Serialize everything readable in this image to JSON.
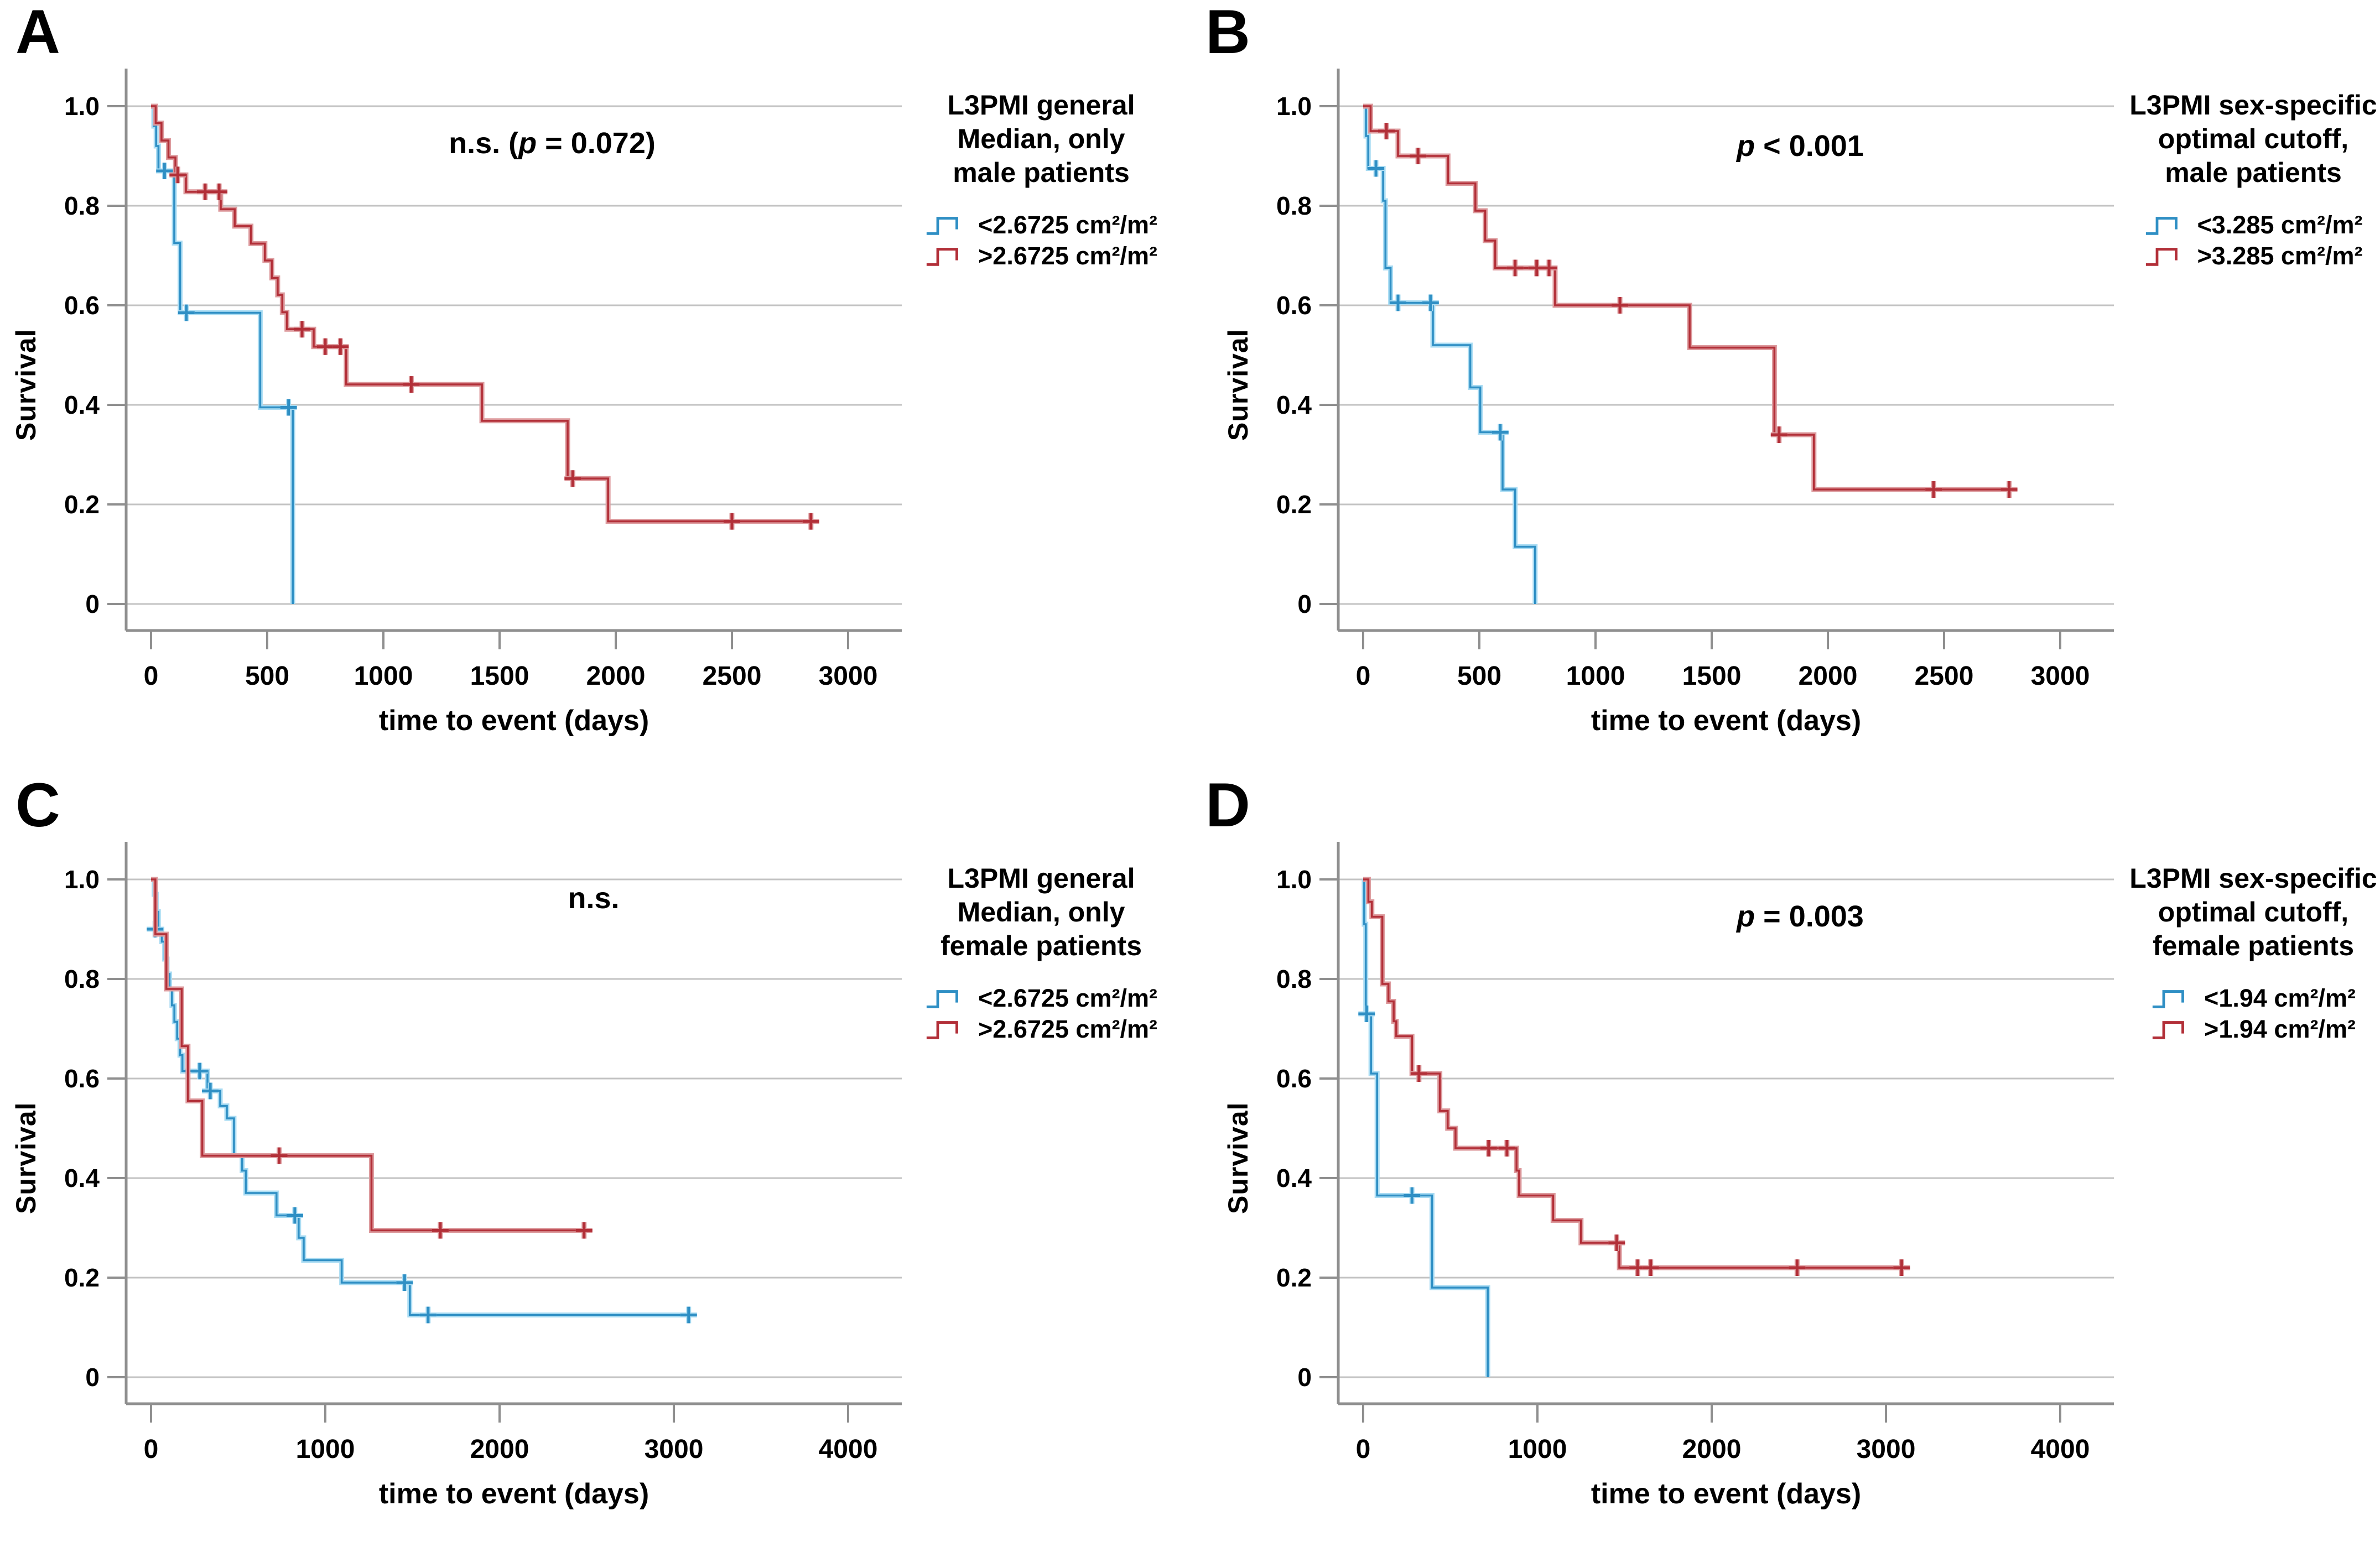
{
  "figure": {
    "ylabel": "Survival",
    "xlabel": "time to event (days)",
    "colors": {
      "blue": "#2f8fc4",
      "blue_halo": "#aadcf3",
      "red": "#b22f38",
      "red_halo": "#dd9b9e",
      "grid": "#c3c3c3",
      "axis": "#8f8f8f",
      "text": "#000000"
    }
  },
  "chart_data": [
    {
      "type": "line",
      "subtype": "kaplan-meier-step",
      "panel_label": "A",
      "title": "L3PMI general Median, only male patients",
      "legend_title_lines": [
        "L3PMI general",
        "Median, only",
        "male patients"
      ],
      "annotation": {
        "prefix": "n.s. (",
        "p": "p",
        "suffix": " = 0.072)"
      },
      "xlabel": "time to event (days)",
      "ylabel": "Survival",
      "xlim": [
        0,
        3000
      ],
      "ylim": [
        0,
        1
      ],
      "xticks": [
        0,
        500,
        1000,
        1500,
        2000,
        2500,
        3000
      ],
      "yticks": [
        {
          "v": 1,
          "label": "1.0"
        },
        {
          "v": 0.8,
          "label": "0.8"
        },
        {
          "v": 0.6,
          "label": "0.6"
        },
        {
          "v": 0.4,
          "label": "0.4"
        },
        {
          "v": 0.2,
          "label": "0.2"
        },
        {
          "v": 0,
          "label": "0"
        }
      ],
      "grid": true,
      "legend_position": "right",
      "series": [
        {
          "name": "<2.6725 cm²/m²",
          "color_key": "blue",
          "steps": [
            [
              0,
              1
            ],
            [
              12,
              0.96
            ],
            [
              22,
              0.92
            ],
            [
              32,
              0.87
            ],
            [
              100,
              0.725
            ],
            [
              125,
              0.585
            ],
            [
              470,
              0.395
            ],
            [
              610,
              0
            ]
          ],
          "end": 610,
          "censors": [
            [
              58,
              0.87
            ],
            [
              152,
              0.585
            ],
            [
              592,
              0.395
            ]
          ]
        },
        {
          "name": ">2.6725 cm²/m²",
          "color_key": "red",
          "steps": [
            [
              0,
              1
            ],
            [
              20,
              0.966
            ],
            [
              45,
              0.931
            ],
            [
              75,
              0.897
            ],
            [
              105,
              0.862
            ],
            [
              150,
              0.828
            ],
            [
              300,
              0.793
            ],
            [
              360,
              0.759
            ],
            [
              430,
              0.724
            ],
            [
              490,
              0.69
            ],
            [
              520,
              0.655
            ],
            [
              545,
              0.621
            ],
            [
              565,
              0.586
            ],
            [
              585,
              0.552
            ],
            [
              700,
              0.517
            ],
            [
              840,
              0.441
            ],
            [
              1424,
              0.368
            ],
            [
              1793,
              0.252
            ],
            [
              1967,
              0.166
            ]
          ],
          "end": 2855,
          "censors": [
            [
              115,
              0.862
            ],
            [
              233,
              0.828
            ],
            [
              293,
              0.828
            ],
            [
              650,
              0.552
            ],
            [
              750,
              0.517
            ],
            [
              815,
              0.517
            ],
            [
              1120,
              0.441
            ],
            [
              1815,
              0.252
            ],
            [
              2500,
              0.166
            ],
            [
              2840,
              0.166
            ]
          ]
        }
      ]
    },
    {
      "type": "line",
      "subtype": "kaplan-meier-step",
      "panel_label": "B",
      "title": "L3PMI sex-specific optimal cutoff, male patients",
      "legend_title_lines": [
        "L3PMI sex-specific",
        "optimal cutoff,",
        "male patients"
      ],
      "annotation": {
        "prefix": "",
        "p": "p",
        "suffix": " < 0.001"
      },
      "xlabel": "time to event (days)",
      "ylabel": "Survival",
      "xlim": [
        0,
        3000
      ],
      "ylim": [
        0,
        1
      ],
      "xticks": [
        0,
        500,
        1000,
        1500,
        2000,
        2500,
        3000
      ],
      "yticks": [
        {
          "v": 1,
          "label": "1.0"
        },
        {
          "v": 0.8,
          "label": "0.8"
        },
        {
          "v": 0.6,
          "label": "0.6"
        },
        {
          "v": 0.4,
          "label": "0.4"
        },
        {
          "v": 0.2,
          "label": "0.2"
        },
        {
          "v": 0,
          "label": "0"
        }
      ],
      "grid": true,
      "legend_position": "right",
      "series": [
        {
          "name": "<3.285 cm²/m²",
          "color_key": "blue",
          "steps": [
            [
              0,
              1
            ],
            [
              12,
              0.94
            ],
            [
              22,
              0.875
            ],
            [
              86,
              0.81
            ],
            [
              96,
              0.675
            ],
            [
              118,
              0.605
            ],
            [
              300,
              0.52
            ],
            [
              461,
              0.435
            ],
            [
              504,
              0.345
            ],
            [
              600,
              0.23
            ],
            [
              654,
              0.115
            ],
            [
              740,
              0
            ]
          ],
          "end": 740,
          "censors": [
            [
              55,
              0.875
            ],
            [
              150,
              0.605
            ],
            [
              290,
              0.605
            ],
            [
              590,
              0.345
            ]
          ]
        },
        {
          "name": ">3.285 cm²/m²",
          "color_key": "red",
          "steps": [
            [
              0,
              1
            ],
            [
              32,
              0.95
            ],
            [
              150,
              0.9
            ],
            [
              365,
              0.845
            ],
            [
              483,
              0.79
            ],
            [
              525,
              0.73
            ],
            [
              568,
              0.675
            ],
            [
              826,
              0.6
            ],
            [
              1405,
              0.515
            ],
            [
              1770,
              0.34
            ],
            [
              1940,
              0.23
            ]
          ],
          "end": 2790,
          "censors": [
            [
              100,
              0.95
            ],
            [
              236,
              0.9
            ],
            [
              654,
              0.675
            ],
            [
              747,
              0.675
            ],
            [
              800,
              0.675
            ],
            [
              1105,
              0.6
            ],
            [
              1790,
              0.34
            ],
            [
              2455,
              0.23
            ],
            [
              2780,
              0.23
            ]
          ]
        }
      ]
    },
    {
      "type": "line",
      "subtype": "kaplan-meier-step",
      "panel_label": "C",
      "title": "L3PMI general Median, only female patients",
      "legend_title_lines": [
        "L3PMI general",
        "Median, only",
        "female patients"
      ],
      "annotation": {
        "prefix": "n.s.",
        "p": "",
        "suffix": ""
      },
      "xlabel": "time to event (days)",
      "ylabel": "Survival",
      "xlim": [
        0,
        4000
      ],
      "ylim": [
        0,
        1
      ],
      "xticks": [
        0,
        1000,
        2000,
        3000,
        4000
      ],
      "yticks": [
        {
          "v": 1,
          "label": "1.0"
        },
        {
          "v": 0.8,
          "label": "0.8"
        },
        {
          "v": 0.6,
          "label": "0.6"
        },
        {
          "v": 0.4,
          "label": "0.4"
        },
        {
          "v": 0.2,
          "label": "0.2"
        },
        {
          "v": 0,
          "label": "0"
        }
      ],
      "grid": true,
      "legend_position": "right",
      "series": [
        {
          "name": "<2.6725 cm²/m²",
          "color_key": "blue",
          "steps": [
            [
              0,
              1
            ],
            [
              18,
              0.97
            ],
            [
              30,
              0.935
            ],
            [
              42,
              0.9
            ],
            [
              62,
              0.875
            ],
            [
              78,
              0.84
            ],
            [
              92,
              0.81
            ],
            [
              106,
              0.78
            ],
            [
              120,
              0.747
            ],
            [
              134,
              0.714
            ],
            [
              150,
              0.68
            ],
            [
              166,
              0.647
            ],
            [
              180,
              0.615
            ],
            [
              324,
              0.575
            ],
            [
              397,
              0.545
            ],
            [
              435,
              0.52
            ],
            [
              476,
              0.445
            ],
            [
              523,
              0.415
            ],
            [
              544,
              0.37
            ],
            [
              720,
              0.325
            ],
            [
              847,
              0.28
            ],
            [
              876,
              0.235
            ],
            [
              1094,
              0.19
            ],
            [
              1485,
              0.125
            ]
          ],
          "end": 3090,
          "censors": [
            [
              23,
              0.9
            ],
            [
              279,
              0.615
            ],
            [
              340,
              0.575
            ],
            [
              825,
              0.325
            ],
            [
              1455,
              0.19
            ],
            [
              1590,
              0.125
            ],
            [
              3085,
              0.125
            ]
          ]
        },
        {
          "name": ">2.6725 cm²/m²",
          "color_key": "red",
          "steps": [
            [
              0,
              1
            ],
            [
              25,
              0.89
            ],
            [
              88,
              0.78
            ],
            [
              176,
              0.665
            ],
            [
              212,
              0.555
            ],
            [
              294,
              0.445
            ],
            [
              1265,
              0.295
            ]
          ],
          "end": 2500,
          "censors": [
            [
              735,
              0.445
            ],
            [
              1660,
              0.295
            ],
            [
              2485,
              0.295
            ]
          ]
        }
      ]
    },
    {
      "type": "line",
      "subtype": "kaplan-meier-step",
      "panel_label": "D",
      "title": "L3PMI sex-specific optimal cutoff, female patients",
      "legend_title_lines": [
        "L3PMI sex-specific",
        "optimal cutoff,",
        "female patients"
      ],
      "annotation": {
        "prefix": "",
        "p": "p",
        "suffix": " = 0.003"
      },
      "xlabel": "time to event (days)",
      "ylabel": "Survival",
      "xlim": [
        0,
        4000
      ],
      "ylim": [
        0,
        1
      ],
      "xticks": [
        0,
        1000,
        2000,
        3000,
        4000
      ],
      "yticks": [
        {
          "v": 1,
          "label": "1.0"
        },
        {
          "v": 0.8,
          "label": "0.8"
        },
        {
          "v": 0.6,
          "label": "0.6"
        },
        {
          "v": 0.4,
          "label": "0.4"
        },
        {
          "v": 0.2,
          "label": "0.2"
        },
        {
          "v": 0,
          "label": "0"
        }
      ],
      "grid": true,
      "legend_position": "right",
      "series": [
        {
          "name": "<1.94 cm²/m²",
          "color_key": "blue",
          "steps": [
            [
              0,
              1
            ],
            [
              6,
              0.91
            ],
            [
              15,
              0.73
            ],
            [
              45,
              0.61
            ],
            [
              80,
              0.365
            ],
            [
              395,
              0.18
            ],
            [
              715,
              0
            ]
          ],
          "end": 715,
          "censors": [
            [
              20,
              0.73
            ],
            [
              280,
              0.365
            ]
          ]
        },
        {
          "name": ">1.94 cm²/m²",
          "color_key": "red",
          "steps": [
            [
              0,
              1
            ],
            [
              30,
              0.955
            ],
            [
              50,
              0.925
            ],
            [
              110,
              0.79
            ],
            [
              145,
              0.755
            ],
            [
              175,
              0.715
            ],
            [
              190,
              0.685
            ],
            [
              280,
              0.61
            ],
            [
              440,
              0.535
            ],
            [
              485,
              0.5
            ],
            [
              530,
              0.46
            ],
            [
              880,
              0.415
            ],
            [
              895,
              0.365
            ],
            [
              1090,
              0.315
            ],
            [
              1250,
              0.27
            ],
            [
              1470,
              0.22
            ]
          ],
          "end": 3095,
          "censors": [
            [
              320,
              0.61
            ],
            [
              720,
              0.46
            ],
            [
              825,
              0.46
            ],
            [
              1455,
              0.27
            ],
            [
              1575,
              0.22
            ],
            [
              1650,
              0.22
            ],
            [
              2490,
              0.22
            ],
            [
              3090,
              0.22
            ]
          ]
        }
      ]
    }
  ]
}
